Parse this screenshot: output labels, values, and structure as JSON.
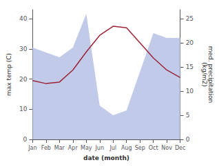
{
  "chart_data": {
    "type": "line",
    "xlabel": "date (month)",
    "ylabel": "max temp (C)",
    "y2label": "med. precipitation\n(kg/m2)",
    "categories": [
      "Jan",
      "Feb",
      "Mar",
      "Apr",
      "May",
      "Jun",
      "Jul",
      "Aug",
      "Sep",
      "Oct",
      "Nov",
      "Dec"
    ],
    "series": [
      {
        "type": "area",
        "axis": "y2",
        "color": "#bbc4e8",
        "values": [
          19.0,
          18.0,
          17.0,
          19.0,
          26.0,
          7.0,
          5.0,
          6.0,
          14.0,
          22.0,
          21.0,
          21.0
        ]
      },
      {
        "type": "line",
        "axis": "y",
        "color": "#9b2335",
        "values": [
          19.5,
          18.5,
          19.0,
          23.0,
          29.0,
          34.5,
          37.5,
          37.0,
          32.0,
          27.0,
          23.0,
          20.5
        ]
      }
    ],
    "ylim": [
      0,
      43
    ],
    "yticks": [
      0,
      10,
      20,
      30,
      40
    ],
    "y2lim": [
      0,
      26.875
    ],
    "y2ticks": [
      0,
      5,
      10,
      15,
      20,
      25
    ],
    "grid": false
  }
}
